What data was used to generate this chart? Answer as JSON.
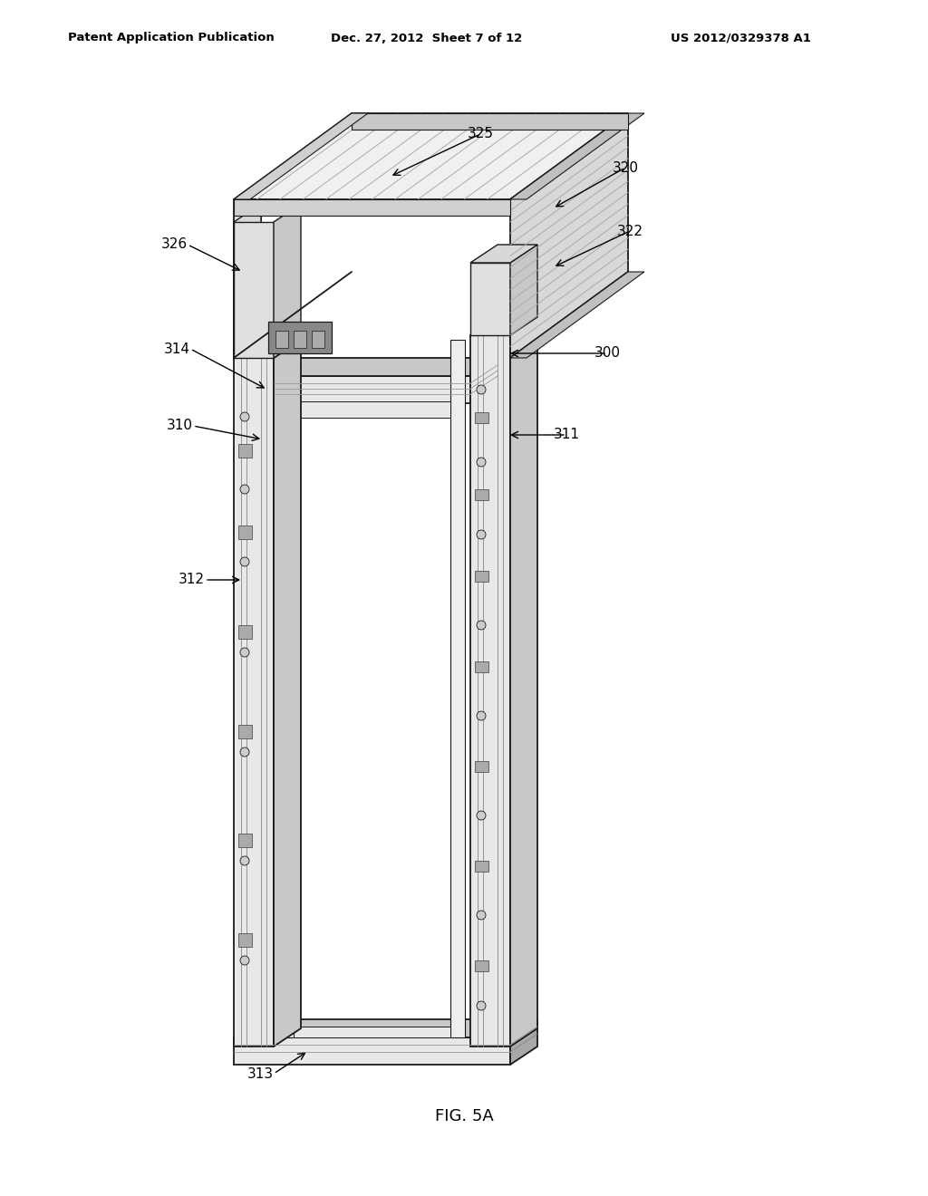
{
  "bg_color": "#ffffff",
  "line_color": "#1a1a1a",
  "header_left": "Patent Application Publication",
  "header_center": "Dec. 27, 2012  Sheet 7 of 12",
  "header_right": "US 2012/0329378 A1",
  "figure_label": "FIG. 5A",
  "gray_light": "#e8e8e8",
  "gray_mid": "#c8c8c8",
  "gray_dark": "#a8a8a8",
  "gray_fill": "#f2f2f2",
  "white": "#ffffff"
}
